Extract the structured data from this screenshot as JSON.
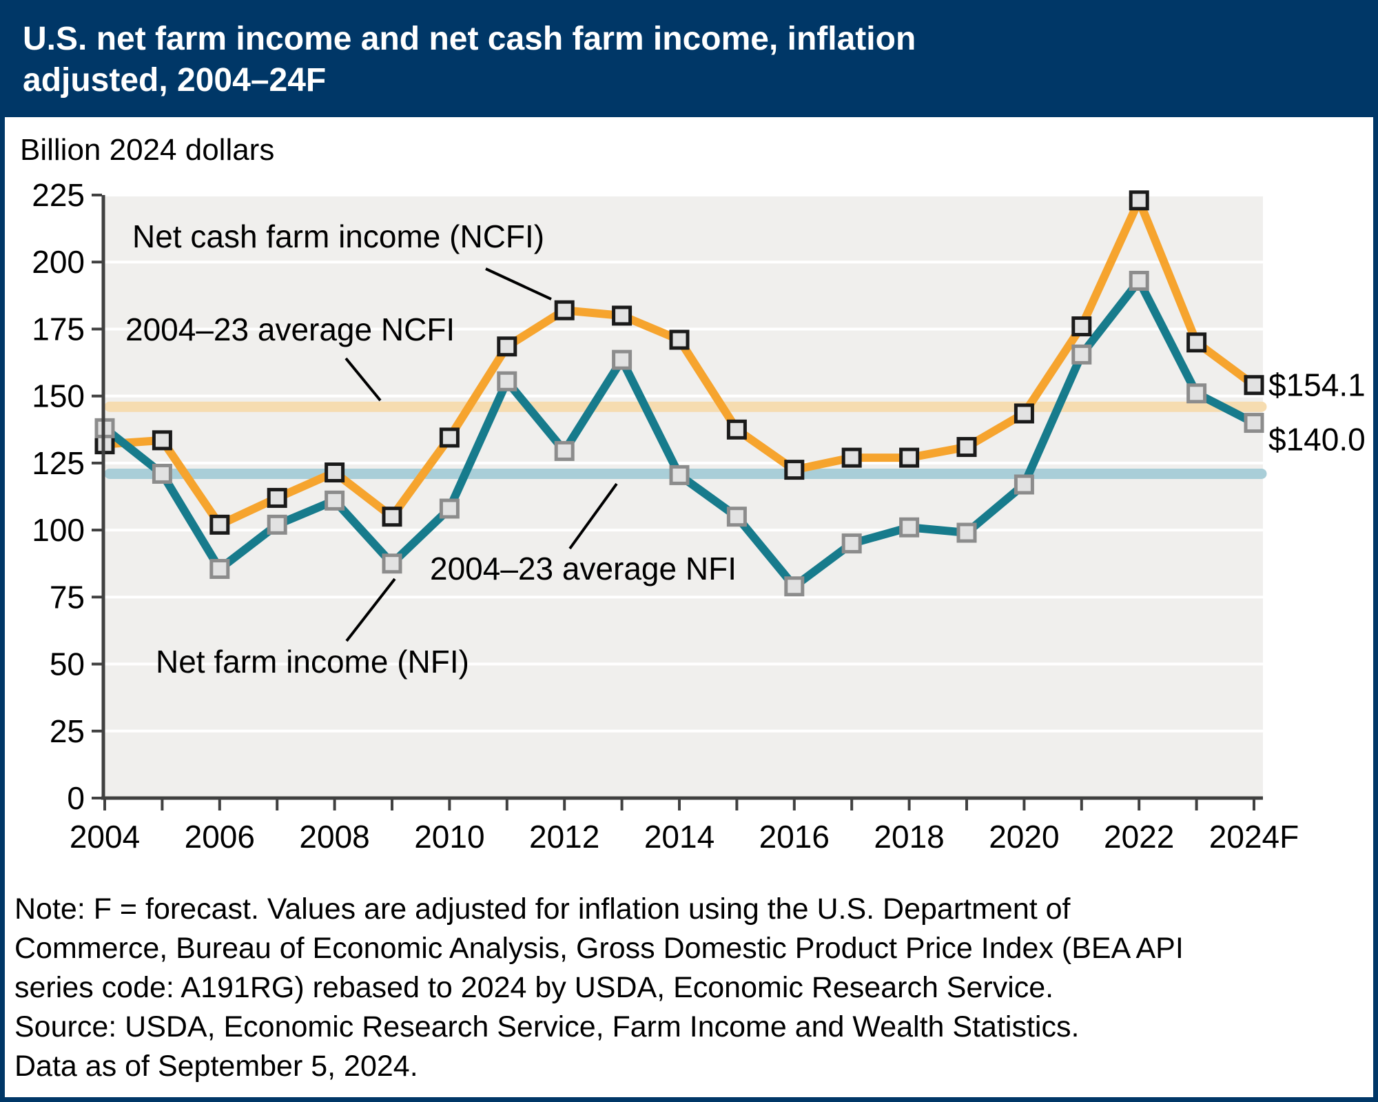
{
  "title_lines": [
    "U.S. net farm income and net cash farm income, inflation",
    "adjusted, 2004–24F"
  ],
  "chart_data": {
    "type": "line",
    "title": "U.S. net farm income and net cash farm income, inflation adjusted, 2004–24F",
    "ylabel": "Billion 2024 dollars",
    "ylim": [
      0,
      225
    ],
    "ytick_interval": 25,
    "grid": true,
    "legend_position": "annotations-in-plot",
    "x": [
      "2004",
      "2005",
      "2006",
      "2007",
      "2008",
      "2009",
      "2010",
      "2011",
      "2012",
      "2013",
      "2014",
      "2015",
      "2016",
      "2017",
      "2018",
      "2019",
      "2020",
      "2021",
      "2022",
      "2023",
      "2024F"
    ],
    "x_labels_shown": [
      "2004",
      "2006",
      "2008",
      "2010",
      "2012",
      "2014",
      "2016",
      "2018",
      "2020",
      "2022",
      "2024F"
    ],
    "series": [
      {
        "id": "ncfi",
        "name": "Net cash farm income (NCFI)",
        "color": "#F6A42E",
        "marker_border": "#1A1A1A",
        "values": [
          132,
          133.5,
          102,
          112,
          121.5,
          105,
          134.5,
          168.5,
          182,
          180,
          171,
          137.5,
          122.5,
          127,
          127,
          131,
          143.5,
          176,
          223,
          170,
          154.1
        ]
      },
      {
        "id": "nfi",
        "name": "Net farm income (NFI)",
        "color": "#177B8C",
        "marker_border": "#8C8C8C",
        "values": [
          138,
          121,
          85.5,
          102,
          111,
          87.5,
          108,
          155.5,
          129.5,
          163.5,
          120.5,
          105,
          79,
          95,
          101,
          99,
          117,
          165.5,
          193,
          151,
          140
        ]
      }
    ],
    "reference_lines": [
      {
        "id": "ncfi-average",
        "label": "2004–23 average NCFI",
        "value": 146,
        "color": "#F6DCB0"
      },
      {
        "id": "nfi-average",
        "label": "2004–23 average NFI",
        "value": 121,
        "color": "#A9CED8"
      }
    ],
    "end_labels": {
      "ncfi": "$154.1",
      "nfi": "$140.0"
    }
  },
  "annotations": [
    {
      "id": "ncfi-label",
      "text": "Net cash farm income (NCFI)"
    },
    {
      "id": "ncfi-average-label",
      "text": "2004–23 average NCFI"
    },
    {
      "id": "nfi-average-label",
      "text": "2004–23 average NFI"
    },
    {
      "id": "nfi-label",
      "text": "Net farm income (NFI)"
    }
  ],
  "note_lines": [
    "Note: F = forecast. Values are adjusted for inflation using the U.S. Department of",
    "Commerce, Bureau of Economic Analysis, Gross Domestic Product Price Index (BEA API",
    "series code: A191RG) rebased to 2024 by USDA, Economic Research Service.",
    "Source: USDA, Economic Research Service, Farm Income and Wealth Statistics.",
    "Data as of September 5, 2024."
  ],
  "colors": {
    "header_bg": "#003767",
    "header_text": "#FFFFFF",
    "frame_border": "#003767",
    "plot_bg": "#F0EFED",
    "gridline": "#FFFFFF",
    "axis": "#404040",
    "marker_fill": "#E2E2E2",
    "annotation_line": "#000000"
  }
}
